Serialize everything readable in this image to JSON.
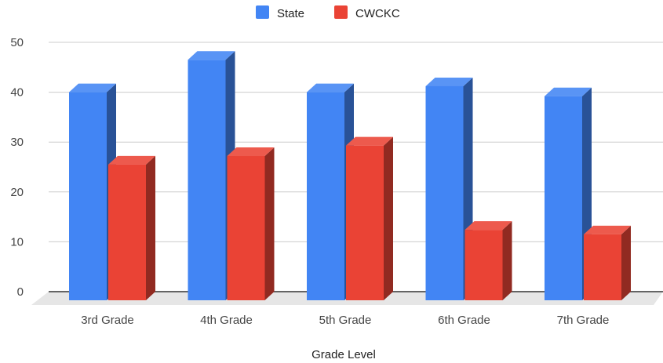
{
  "chart_data": {
    "type": "bar",
    "title": "",
    "xlabel": "Grade Level",
    "ylabel": "",
    "categories": [
      "3rd Grade",
      "4th Grade",
      "5th Grade",
      "6th Grade",
      "7th Grade"
    ],
    "series": [
      {
        "name": "State",
        "values": [
          40,
          46.5,
          40,
          41.2,
          39.2
        ],
        "color": "#4285f4"
      },
      {
        "name": "CWCKC",
        "values": [
          25.5,
          27.2,
          29.3,
          12.4,
          11.5
        ],
        "color": "#ea4335"
      }
    ],
    "ylim": [
      0,
      50
    ],
    "yticks": [
      0,
      10,
      20,
      30,
      40,
      50
    ],
    "grid": true,
    "legend_position": "top-center",
    "style": "3d"
  }
}
